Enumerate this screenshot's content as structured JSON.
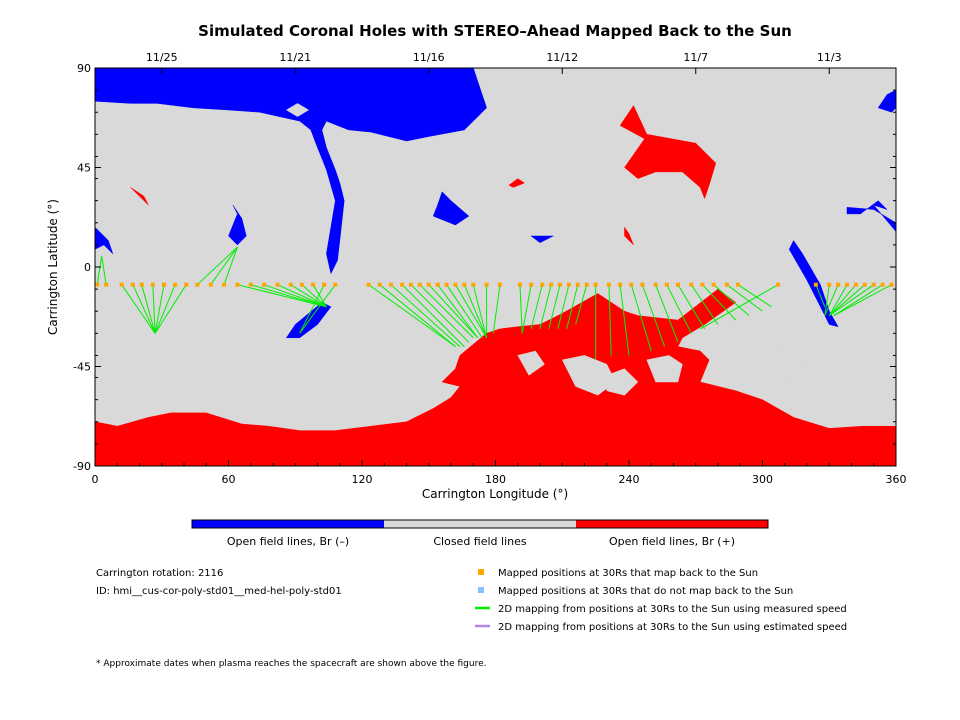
{
  "chart_data": {
    "type": "map",
    "title": "Simulated Coronal Holes with STEREO–Ahead Mapped Back to the Sun",
    "xlabel": "Carrington Longitude (°)",
    "ylabel": "Carrington Latitude (°)",
    "xlim": [
      0,
      360
    ],
    "ylim": [
      -90,
      90
    ],
    "x_ticks": [
      0,
      60,
      120,
      180,
      240,
      300,
      360
    ],
    "y_ticks": [
      -90,
      -45,
      0,
      45,
      90
    ],
    "top_axis_dates": [
      {
        "label": "11/25",
        "lon": 30
      },
      {
        "label": "11/21",
        "lon": 90
      },
      {
        "label": "11/16",
        "lon": 150
      },
      {
        "label": "11/12",
        "lon": 210
      },
      {
        "label": "11/7",
        "lon": 270
      },
      {
        "label": "11/3",
        "lon": 330
      }
    ],
    "colors": {
      "open_negative": "#0000ff",
      "closed": "#d9d9d9",
      "open_positive": "#ff0000",
      "mapped_back": "#ffa500",
      "not_mapped": "#87bfff",
      "measured_speed": "#00ee00",
      "estimated_speed": "#b585e8"
    },
    "mapping_latitude": -8,
    "mapped_points": [
      {
        "lon": 1,
        "foot": [
          3,
          5
        ]
      },
      {
        "lon": 5,
        "foot": [
          3,
          5
        ]
      },
      {
        "lon": 12,
        "foot": [
          27,
          -30
        ]
      },
      {
        "lon": 17,
        "foot": [
          27,
          -30
        ]
      },
      {
        "lon": 21,
        "foot": [
          27,
          -30
        ]
      },
      {
        "lon": 26,
        "foot": [
          27,
          -30
        ]
      },
      {
        "lon": 31,
        "foot": [
          27,
          -30
        ]
      },
      {
        "lon": 36,
        "foot": [
          27,
          -30
        ]
      },
      {
        "lon": 41,
        "foot": [
          27,
          -30
        ]
      },
      {
        "lon": 46,
        "foot": [
          64,
          9
        ]
      },
      {
        "lon": 52,
        "foot": [
          64,
          9
        ]
      },
      {
        "lon": 58,
        "foot": [
          64,
          9
        ]
      },
      {
        "lon": 64,
        "foot": [
          104,
          -18
        ]
      },
      {
        "lon": 70,
        "foot": [
          104,
          -18
        ]
      },
      {
        "lon": 76,
        "foot": [
          104,
          -18
        ]
      },
      {
        "lon": 82,
        "foot": [
          104,
          -18
        ]
      },
      {
        "lon": 88,
        "foot": [
          104,
          -18
        ]
      },
      {
        "lon": 93,
        "foot": [
          104,
          -18
        ]
      },
      {
        "lon": 98,
        "foot": [
          104,
          -18
        ]
      },
      {
        "lon": 103,
        "foot": [
          92,
          -30
        ]
      },
      {
        "lon": 108,
        "foot": [
          92,
          -30
        ]
      },
      {
        "lon": 123,
        "foot": [
          162,
          -36
        ]
      },
      {
        "lon": 128,
        "foot": [
          162,
          -36
        ]
      },
      {
        "lon": 133,
        "foot": [
          164,
          -36
        ]
      },
      {
        "lon": 138,
        "foot": [
          166,
          -36
        ]
      },
      {
        "lon": 142,
        "foot": [
          168,
          -34
        ]
      },
      {
        "lon": 146,
        "foot": [
          170,
          -32
        ]
      },
      {
        "lon": 150,
        "foot": [
          172,
          -32
        ]
      },
      {
        "lon": 154,
        "foot": [
          172,
          -32
        ]
      },
      {
        "lon": 158,
        "foot": [
          174,
          -32
        ]
      },
      {
        "lon": 162,
        "foot": [
          176,
          -32
        ]
      },
      {
        "lon": 166,
        "foot": [
          176,
          -32
        ]
      },
      {
        "lon": 170,
        "foot": [
          176,
          -32
        ]
      },
      {
        "lon": 176,
        "foot": [
          176,
          -30
        ]
      },
      {
        "lon": 182,
        "foot": [
          179,
          -30
        ]
      },
      {
        "lon": 191,
        "foot": [
          192,
          -30
        ]
      },
      {
        "lon": 196,
        "foot": [
          192,
          -30
        ]
      },
      {
        "lon": 201,
        "foot": [
          196,
          -28
        ]
      },
      {
        "lon": 205,
        "foot": [
          200,
          -28
        ]
      },
      {
        "lon": 209,
        "foot": [
          204,
          -28
        ]
      },
      {
        "lon": 213,
        "foot": [
          208,
          -28
        ]
      },
      {
        "lon": 217,
        "foot": [
          212,
          -28
        ]
      },
      {
        "lon": 221,
        "foot": [
          216,
          -26
        ]
      },
      {
        "lon": 225,
        "foot": [
          225,
          -42
        ]
      },
      {
        "lon": 231,
        "foot": [
          232,
          -40
        ]
      },
      {
        "lon": 236,
        "foot": [
          240,
          -40
        ]
      },
      {
        "lon": 241,
        "foot": [
          250,
          -38
        ]
      },
      {
        "lon": 246,
        "foot": [
          256,
          -36
        ]
      },
      {
        "lon": 252,
        "foot": [
          262,
          -34
        ]
      },
      {
        "lon": 257,
        "foot": [
          268,
          -30
        ]
      },
      {
        "lon": 262,
        "foot": [
          274,
          -28
        ]
      },
      {
        "lon": 268,
        "foot": [
          280,
          -26
        ]
      },
      {
        "lon": 273,
        "foot": [
          288,
          -24
        ]
      },
      {
        "lon": 278,
        "foot": [
          294,
          -22
        ]
      },
      {
        "lon": 284,
        "foot": [
          300,
          -20
        ]
      },
      {
        "lon": 289,
        "foot": [
          304,
          -18
        ]
      },
      {
        "lon": 307,
        "foot": [
          272,
          -28
        ]
      },
      {
        "lon": 324,
        "foot": [
          328,
          -18
        ]
      },
      {
        "lon": 330,
        "foot": [
          328,
          -22
        ]
      },
      {
        "lon": 334,
        "foot": [
          328,
          -22
        ]
      },
      {
        "lon": 338,
        "foot": [
          330,
          -22
        ]
      },
      {
        "lon": 342,
        "foot": [
          330,
          -22
        ]
      },
      {
        "lon": 346,
        "foot": [
          330,
          -22
        ]
      },
      {
        "lon": 350,
        "foot": [
          330,
          -22
        ]
      },
      {
        "lon": 354,
        "foot": [
          332,
          -22
        ]
      },
      {
        "lon": 358,
        "foot": [
          332,
          -22
        ]
      }
    ],
    "regions": {
      "open_negative": [
        [
          [
            0,
            90
          ],
          [
            170,
            90
          ],
          [
            172,
            84
          ],
          [
            176,
            72
          ],
          [
            166,
            62
          ],
          [
            150,
            59
          ],
          [
            140,
            57
          ],
          [
            124,
            61
          ],
          [
            114,
            62
          ],
          [
            104,
            66
          ],
          [
            102,
            62
          ],
          [
            104,
            54
          ],
          [
            108,
            44
          ],
          [
            110,
            38
          ],
          [
            112,
            30
          ],
          [
            111,
            21
          ],
          [
            110,
            12
          ],
          [
            109,
            3
          ],
          [
            106,
            -3
          ],
          [
            104,
            6
          ],
          [
            106,
            18
          ],
          [
            108,
            30
          ],
          [
            104,
            44
          ],
          [
            100,
            54
          ],
          [
            97,
            62
          ],
          [
            92,
            66
          ],
          [
            74,
            70
          ],
          [
            60,
            71
          ],
          [
            44,
            72
          ],
          [
            28,
            74
          ],
          [
            16,
            74
          ],
          [
            0,
            75
          ]
        ],
        [
          [
            0,
            18
          ],
          [
            6,
            12
          ],
          [
            8,
            6
          ],
          [
            4,
            10
          ],
          [
            0,
            8
          ]
        ],
        [
          [
            62,
            28
          ],
          [
            66,
            22
          ],
          [
            68,
            14
          ],
          [
            64,
            10
          ],
          [
            60,
            14
          ],
          [
            64,
            24
          ]
        ],
        [
          [
            156,
            34
          ],
          [
            160,
            30
          ],
          [
            168,
            23
          ],
          [
            162,
            19
          ],
          [
            152,
            23
          ],
          [
            154,
            28
          ]
        ],
        [
          [
            196,
            14
          ],
          [
            206,
            14
          ],
          [
            200,
            11
          ]
        ],
        [
          [
            360,
            80
          ],
          [
            356,
            78
          ],
          [
            352,
            72
          ],
          [
            358,
            70
          ],
          [
            360,
            72
          ]
        ],
        [
          [
            352,
            30
          ],
          [
            356,
            26
          ],
          [
            350,
            28
          ],
          [
            360,
            16
          ],
          [
            360,
            20
          ],
          [
            350,
            26
          ],
          [
            338,
            27
          ],
          [
            338,
            24
          ],
          [
            344,
            24
          ]
        ],
        [
          [
            314,
            12
          ],
          [
            318,
            6
          ],
          [
            326,
            -8
          ],
          [
            330,
            -20
          ],
          [
            334,
            -27
          ],
          [
            330,
            -26
          ],
          [
            326,
            -18
          ],
          [
            320,
            -6
          ],
          [
            312,
            8
          ]
        ],
        [
          [
            102,
            -16
          ],
          [
            106,
            -18
          ],
          [
            100,
            -26
          ],
          [
            92,
            -32
          ],
          [
            86,
            -32
          ],
          [
            90,
            -26
          ]
        ]
      ],
      "open_positive": [
        [
          [
            0,
            -70
          ],
          [
            10,
            -72
          ],
          [
            24,
            -68
          ],
          [
            34,
            -66
          ],
          [
            50,
            -66
          ],
          [
            66,
            -71
          ],
          [
            78,
            -72
          ],
          [
            92,
            -74
          ],
          [
            108,
            -74
          ],
          [
            124,
            -72
          ],
          [
            140,
            -70
          ],
          [
            152,
            -64
          ],
          [
            160,
            -59
          ],
          [
            164,
            -54
          ],
          [
            156,
            -52
          ],
          [
            162,
            -46
          ],
          [
            164,
            -40
          ],
          [
            176,
            -30
          ],
          [
            182,
            -28
          ],
          [
            190,
            -27
          ],
          [
            200,
            -26
          ],
          [
            210,
            -21
          ],
          [
            226,
            -12
          ],
          [
            238,
            -20
          ],
          [
            244,
            -22
          ],
          [
            262,
            -24
          ],
          [
            280,
            -10
          ],
          [
            288,
            -16
          ],
          [
            274,
            -26
          ],
          [
            264,
            -32
          ],
          [
            262,
            -36
          ],
          [
            272,
            -38
          ],
          [
            276,
            -42
          ],
          [
            272,
            -52
          ],
          [
            288,
            -56
          ],
          [
            300,
            -60
          ],
          [
            314,
            -68
          ],
          [
            330,
            -73
          ],
          [
            345,
            -72
          ],
          [
            360,
            -72
          ],
          [
            360,
            -90
          ],
          [
            0,
            -90
          ]
        ],
        [
          [
            242,
            73
          ],
          [
            248,
            60
          ],
          [
            270,
            56
          ],
          [
            279,
            47
          ],
          [
            276,
            37
          ],
          [
            274,
            31
          ],
          [
            272,
            36
          ],
          [
            264,
            43
          ],
          [
            252,
            43
          ],
          [
            244,
            40
          ],
          [
            238,
            45
          ],
          [
            247,
            58
          ],
          [
            236,
            64
          ]
        ],
        [
          [
            186,
            37
          ],
          [
            190,
            40
          ],
          [
            193,
            38
          ],
          [
            188,
            36
          ]
        ],
        [
          [
            16,
            36
          ],
          [
            24,
            28
          ],
          [
            22,
            32
          ]
        ],
        [
          [
            238,
            18
          ],
          [
            240,
            15
          ],
          [
            242,
            10
          ],
          [
            238,
            14
          ]
        ]
      ],
      "closed_islands": [
        [
          [
            86,
            71
          ],
          [
            91,
            68
          ],
          [
            96,
            71
          ],
          [
            91,
            74
          ]
        ],
        [
          [
            190,
            -40
          ],
          [
            198,
            -38
          ],
          [
            202,
            -44
          ],
          [
            195,
            -49
          ]
        ],
        [
          [
            210,
            -42
          ],
          [
            220,
            -40
          ],
          [
            230,
            -44
          ],
          [
            234,
            -52
          ],
          [
            226,
            -58
          ],
          [
            216,
            -54
          ]
        ],
        [
          [
            230,
            -49
          ],
          [
            238,
            -46
          ],
          [
            244,
            -52
          ],
          [
            238,
            -58
          ],
          [
            230,
            -56
          ]
        ],
        [
          [
            248,
            -42
          ],
          [
            258,
            -40
          ],
          [
            264,
            -44
          ],
          [
            262,
            -52
          ],
          [
            252,
            -52
          ]
        ],
        [
          [
            300,
            -40
          ],
          [
            310,
            -38
          ],
          [
            320,
            -44
          ],
          [
            312,
            -50
          ],
          [
            302,
            -48
          ]
        ]
      ]
    }
  },
  "colorbar": {
    "labels": [
      "Open field lines, Br (–)",
      "Closed field lines",
      "Open field lines, Br (+)"
    ]
  },
  "info": {
    "rotation": "Carrington rotation: 2116",
    "id": "ID: hmi__cus-cor-poly-std01__med-hel-poly-std01"
  },
  "legend": [
    {
      "label": "Mapped positions at 30Rs that map back to the Sun",
      "kind": "square",
      "color": "#ffa500"
    },
    {
      "label": "Mapped positions at 30Rs that do not map back to the Sun",
      "kind": "square",
      "color": "#87bfff"
    },
    {
      "label": "2D mapping from positions at 30Rs to the Sun using measured speed",
      "kind": "line",
      "color": "#00ee00"
    },
    {
      "label": "2D mapping from positions at 30Rs to the Sun using estimated speed",
      "kind": "line",
      "color": "#b585e8"
    }
  ],
  "footnote": "* Approximate dates when plasma reaches the spacecraft are shown above the figure."
}
